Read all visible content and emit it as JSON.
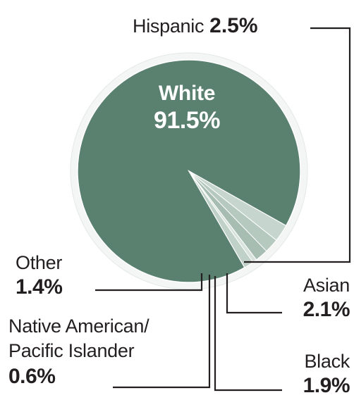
{
  "chart_data": {
    "type": "pie",
    "slices": [
      {
        "label": "White",
        "value": 91.5,
        "value_label": "91.5%",
        "color": "#5a8070"
      },
      {
        "label": "Hispanic",
        "value": 2.5,
        "value_label": "2.5%",
        "color": "#c6d5cd"
      },
      {
        "label": "Asian",
        "value": 2.1,
        "value_label": "2.1%",
        "color": "#b6c9bf"
      },
      {
        "label": "Black",
        "value": 1.9,
        "value_label": "1.9%",
        "color": "#a7bdb2"
      },
      {
        "label": "Native American/ Pacific Islander",
        "value": 0.6,
        "value_label": "0.6%",
        "color": "#d8e3dd"
      },
      {
        "label": "Other",
        "value": 1.4,
        "value_label": "1.4%",
        "color": "#c0d1c8"
      }
    ],
    "label_lines": {
      "native_line1": "Native American/",
      "native_line2": "Pacific Islander"
    },
    "colors": {
      "leader": "#231f20",
      "ring": "#f4f6f5"
    }
  }
}
